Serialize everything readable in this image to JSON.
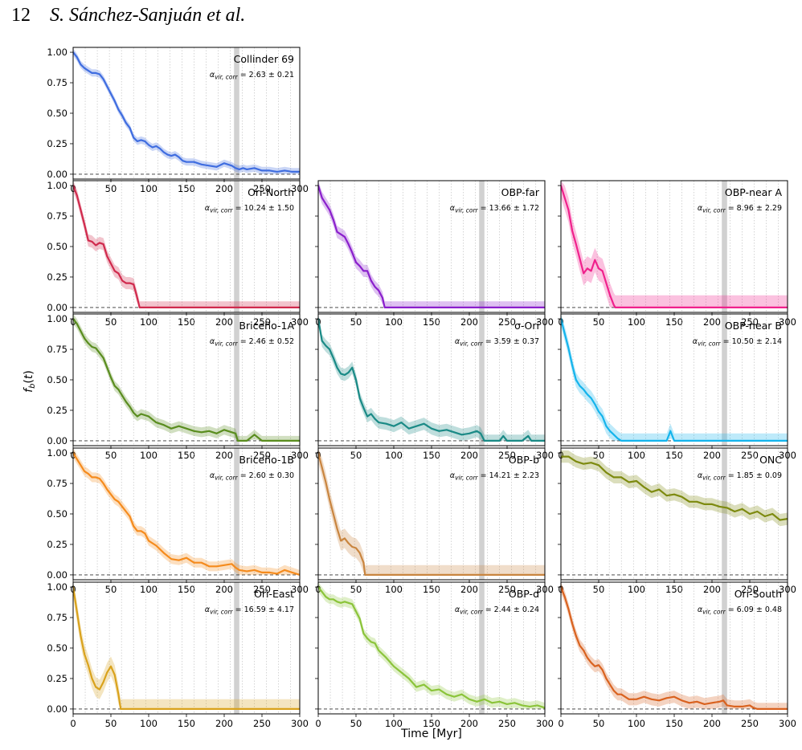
{
  "header": {
    "page_number": "12",
    "authors": "S. Sánchez-Sanjuán et al."
  },
  "figure": {
    "xlabel": "Time [Myr]",
    "ylabel": "f_b(t)"
  },
  "chart_data": {
    "type": "line",
    "xlim": [
      0,
      300
    ],
    "ylim": [
      -0.04,
      1.04
    ],
    "xticks": [
      0,
      50,
      100,
      150,
      200,
      250,
      300
    ],
    "yticks": [
      0.0,
      0.25,
      0.5,
      0.75,
      1.0
    ],
    "xtick_labels": [
      "0",
      "50",
      "100",
      "150",
      "200",
      "250",
      "300"
    ],
    "ytick_labels": [
      "0.00",
      "0.25",
      "0.50",
      "0.75",
      "1.00"
    ],
    "vertical_gridlines": [
      16,
      32,
      48,
      64,
      80,
      96,
      112,
      128,
      144,
      160,
      176,
      192,
      208,
      224,
      240,
      256,
      272,
      288
    ],
    "shaded_band": [
      213,
      220
    ],
    "zero_reference_line": 0,
    "panels": [
      {
        "name": "Collinder 69",
        "alpha_text": "= 2.63 ± 0.21",
        "color": "#3f6de0",
        "row": 0,
        "col": 0,
        "band": 0.03,
        "x": [
          0,
          5,
          10,
          15,
          20,
          25,
          30,
          35,
          40,
          45,
          50,
          55,
          60,
          65,
          70,
          75,
          80,
          85,
          90,
          95,
          100,
          105,
          110,
          115,
          120,
          125,
          130,
          135,
          140,
          145,
          150,
          160,
          170,
          180,
          190,
          200,
          205,
          210,
          215,
          220,
          225,
          230,
          240,
          250,
          260,
          270,
          280,
          290,
          300
        ],
        "y": [
          1.0,
          0.96,
          0.9,
          0.87,
          0.85,
          0.83,
          0.83,
          0.82,
          0.78,
          0.72,
          0.66,
          0.6,
          0.53,
          0.48,
          0.42,
          0.38,
          0.3,
          0.27,
          0.28,
          0.27,
          0.24,
          0.22,
          0.23,
          0.21,
          0.18,
          0.16,
          0.15,
          0.16,
          0.14,
          0.11,
          0.1,
          0.1,
          0.08,
          0.07,
          0.06,
          0.09,
          0.08,
          0.07,
          0.05,
          0.04,
          0.05,
          0.04,
          0.05,
          0.03,
          0.03,
          0.02,
          0.03,
          0.02,
          0.02
        ]
      },
      {
        "name": "Ori-North",
        "alpha_text": "= 10.24 ± 1.50",
        "color": "#d02a4d",
        "row": 1,
        "col": 0,
        "band": 0.05,
        "x": [
          0,
          5,
          10,
          15,
          20,
          25,
          30,
          35,
          40,
          45,
          50,
          55,
          60,
          65,
          70,
          75,
          80,
          84,
          88,
          300
        ],
        "y": [
          1.0,
          0.92,
          0.8,
          0.68,
          0.55,
          0.54,
          0.51,
          0.53,
          0.52,
          0.42,
          0.36,
          0.3,
          0.28,
          0.22,
          0.2,
          0.2,
          0.19,
          0.1,
          0.0,
          0.0
        ]
      },
      {
        "name": "OBP-far",
        "alpha_text": "= 13.66 ± 1.72",
        "color": "#8a1fcc",
        "row": 1,
        "col": 1,
        "band": 0.05,
        "x": [
          0,
          5,
          10,
          15,
          20,
          25,
          30,
          35,
          40,
          45,
          50,
          55,
          60,
          65,
          70,
          75,
          80,
          85,
          88,
          300
        ],
        "y": [
          1.0,
          0.9,
          0.85,
          0.8,
          0.72,
          0.62,
          0.6,
          0.58,
          0.52,
          0.45,
          0.37,
          0.34,
          0.3,
          0.3,
          0.22,
          0.17,
          0.14,
          0.08,
          0.0,
          0.0
        ]
      },
      {
        "name": "OBP-near A",
        "alpha_text": "= 8.96 ± 2.29",
        "color": "#f0218c",
        "row": 1,
        "col": 2,
        "band": 0.1,
        "x": [
          0,
          5,
          10,
          15,
          20,
          25,
          30,
          35,
          40,
          45,
          50,
          55,
          60,
          65,
          70,
          72,
          300
        ],
        "y": [
          1.0,
          0.9,
          0.8,
          0.63,
          0.52,
          0.4,
          0.28,
          0.32,
          0.3,
          0.39,
          0.32,
          0.3,
          0.2,
          0.1,
          0.02,
          0.0,
          0.0
        ]
      },
      {
        "name": "Briceño-1A",
        "alpha_text": "= 2.46 ± 0.52",
        "color": "#5a8d1f",
        "row": 2,
        "col": 0,
        "band": 0.04,
        "x": [
          0,
          5,
          10,
          15,
          20,
          25,
          30,
          35,
          40,
          45,
          50,
          55,
          60,
          65,
          70,
          75,
          80,
          85,
          90,
          100,
          110,
          120,
          130,
          140,
          150,
          160,
          170,
          180,
          190,
          200,
          205,
          210,
          215,
          218,
          225,
          230,
          240,
          250,
          260,
          270,
          280,
          290,
          300
        ],
        "y": [
          1.0,
          0.96,
          0.9,
          0.84,
          0.8,
          0.77,
          0.76,
          0.72,
          0.68,
          0.6,
          0.52,
          0.45,
          0.42,
          0.37,
          0.32,
          0.28,
          0.23,
          0.2,
          0.22,
          0.2,
          0.15,
          0.13,
          0.1,
          0.12,
          0.1,
          0.08,
          0.07,
          0.08,
          0.06,
          0.09,
          0.08,
          0.07,
          0.06,
          0.0,
          0.0,
          0.0,
          0.05,
          0.0,
          0.0,
          0.0,
          0.0,
          0.0,
          0.0
        ]
      },
      {
        "name": "σ-Ori",
        "alpha_text": "= 3.59 ± 0.37",
        "color": "#1a8a86",
        "row": 2,
        "col": 1,
        "band": 0.05,
        "x": [
          0,
          5,
          10,
          15,
          20,
          25,
          30,
          35,
          40,
          45,
          50,
          55,
          60,
          65,
          70,
          75,
          80,
          90,
          100,
          110,
          120,
          130,
          140,
          150,
          160,
          170,
          180,
          190,
          200,
          210,
          215,
          220,
          225,
          230,
          240,
          245,
          250,
          255,
          270,
          278,
          282,
          300
        ],
        "y": [
          1.0,
          0.82,
          0.78,
          0.75,
          0.68,
          0.6,
          0.55,
          0.54,
          0.56,
          0.6,
          0.5,
          0.35,
          0.27,
          0.2,
          0.22,
          0.18,
          0.15,
          0.14,
          0.12,
          0.15,
          0.1,
          0.12,
          0.14,
          0.1,
          0.08,
          0.09,
          0.07,
          0.05,
          0.06,
          0.08,
          0.06,
          0.0,
          0.0,
          0.0,
          0.0,
          0.04,
          0.0,
          0.0,
          0.0,
          0.04,
          0.0,
          0.0
        ]
      },
      {
        "name": "OBP-near B",
        "alpha_text": "= 10.50 ± 2.14",
        "color": "#14b4ec",
        "row": 2,
        "col": 2,
        "band": 0.06,
        "x": [
          0,
          5,
          10,
          15,
          20,
          25,
          30,
          35,
          40,
          45,
          50,
          55,
          60,
          65,
          70,
          75,
          80,
          140,
          145,
          150,
          300
        ],
        "y": [
          1.0,
          0.88,
          0.76,
          0.62,
          0.5,
          0.45,
          0.42,
          0.38,
          0.35,
          0.3,
          0.24,
          0.2,
          0.12,
          0.08,
          0.05,
          0.02,
          0.0,
          0.0,
          0.08,
          0.0,
          0.0
        ]
      },
      {
        "name": "Briceño-1B",
        "alpha_text": "= 2.60 ± 0.30",
        "color": "#f58b1d",
        "row": 3,
        "col": 0,
        "band": 0.04,
        "x": [
          0,
          5,
          10,
          15,
          20,
          25,
          30,
          35,
          40,
          45,
          50,
          55,
          60,
          65,
          70,
          75,
          80,
          85,
          90,
          95,
          100,
          110,
          120,
          130,
          140,
          150,
          160,
          170,
          180,
          190,
          200,
          210,
          215,
          220,
          230,
          240,
          250,
          260,
          270,
          280,
          290,
          300
        ],
        "y": [
          1.0,
          0.95,
          0.9,
          0.85,
          0.83,
          0.8,
          0.8,
          0.79,
          0.75,
          0.7,
          0.66,
          0.62,
          0.6,
          0.56,
          0.52,
          0.48,
          0.4,
          0.36,
          0.36,
          0.34,
          0.28,
          0.24,
          0.18,
          0.13,
          0.12,
          0.14,
          0.1,
          0.1,
          0.07,
          0.07,
          0.08,
          0.09,
          0.06,
          0.04,
          0.03,
          0.04,
          0.02,
          0.02,
          0.01,
          0.04,
          0.02,
          0.0
        ]
      },
      {
        "name": "OBP-b",
        "alpha_text": "= 14.21 ± 2.23",
        "color": "#c9853f",
        "row": 3,
        "col": 1,
        "band": 0.08,
        "x": [
          0,
          5,
          10,
          15,
          20,
          25,
          30,
          35,
          40,
          45,
          50,
          55,
          60,
          62,
          300
        ],
        "y": [
          1.0,
          0.88,
          0.76,
          0.62,
          0.5,
          0.38,
          0.28,
          0.3,
          0.26,
          0.23,
          0.22,
          0.18,
          0.1,
          0.0,
          0.0
        ]
      },
      {
        "name": "ONC",
        "alpha_text": "= 1.85 ± 0.09",
        "color": "#7d8a0f",
        "row": 3,
        "col": 2,
        "band": 0.05,
        "x": [
          0,
          10,
          20,
          30,
          40,
          50,
          60,
          70,
          80,
          90,
          100,
          110,
          120,
          130,
          140,
          150,
          160,
          170,
          180,
          190,
          200,
          210,
          220,
          230,
          240,
          250,
          260,
          270,
          280,
          290,
          300
        ],
        "y": [
          0.97,
          0.97,
          0.93,
          0.91,
          0.92,
          0.9,
          0.84,
          0.8,
          0.8,
          0.76,
          0.77,
          0.72,
          0.68,
          0.7,
          0.65,
          0.66,
          0.64,
          0.6,
          0.6,
          0.58,
          0.58,
          0.56,
          0.55,
          0.52,
          0.54,
          0.5,
          0.52,
          0.48,
          0.5,
          0.45,
          0.46
        ]
      },
      {
        "name": "Ori-East",
        "alpha_text": "= 16.59 ± 4.17",
        "color": "#d9a21c",
        "row": 4,
        "col": 0,
        "band": 0.08,
        "x": [
          0,
          5,
          10,
          15,
          20,
          25,
          30,
          35,
          40,
          45,
          50,
          55,
          60,
          63,
          300
        ],
        "y": [
          1.0,
          0.8,
          0.6,
          0.45,
          0.36,
          0.25,
          0.18,
          0.16,
          0.22,
          0.3,
          0.35,
          0.28,
          0.12,
          0.0,
          0.0
        ]
      },
      {
        "name": "OBP-d",
        "alpha_text": "= 2.44 ± 0.24",
        "color": "#8bc43a",
        "row": 4,
        "col": 1,
        "band": 0.04,
        "x": [
          0,
          5,
          10,
          15,
          20,
          25,
          30,
          35,
          40,
          45,
          50,
          55,
          60,
          65,
          70,
          75,
          80,
          90,
          100,
          110,
          120,
          130,
          140,
          150,
          160,
          170,
          180,
          190,
          200,
          210,
          220,
          230,
          240,
          250,
          260,
          270,
          280,
          290,
          300
        ],
        "y": [
          1.0,
          0.96,
          0.92,
          0.9,
          0.9,
          0.88,
          0.87,
          0.88,
          0.87,
          0.86,
          0.8,
          0.74,
          0.62,
          0.58,
          0.55,
          0.54,
          0.48,
          0.42,
          0.35,
          0.3,
          0.25,
          0.18,
          0.2,
          0.15,
          0.16,
          0.12,
          0.1,
          0.12,
          0.08,
          0.06,
          0.08,
          0.05,
          0.06,
          0.04,
          0.05,
          0.03,
          0.02,
          0.03,
          0.01
        ]
      },
      {
        "name": "Ori-South",
        "alpha_text": "= 6.09 ± 0.48",
        "color": "#d9621f",
        "row": 4,
        "col": 2,
        "band": 0.05,
        "x": [
          0,
          5,
          10,
          15,
          20,
          25,
          30,
          35,
          40,
          45,
          50,
          55,
          60,
          65,
          70,
          75,
          80,
          90,
          100,
          110,
          120,
          130,
          140,
          150,
          160,
          170,
          180,
          190,
          200,
          210,
          215,
          220,
          230,
          240,
          250,
          255,
          260,
          300
        ],
        "y": [
          1.0,
          0.92,
          0.82,
          0.7,
          0.6,
          0.52,
          0.48,
          0.42,
          0.38,
          0.35,
          0.36,
          0.32,
          0.25,
          0.2,
          0.15,
          0.12,
          0.12,
          0.08,
          0.08,
          0.1,
          0.08,
          0.07,
          0.09,
          0.1,
          0.07,
          0.05,
          0.06,
          0.04,
          0.05,
          0.06,
          0.07,
          0.03,
          0.02,
          0.02,
          0.03,
          0.01,
          0.0,
          0.0
        ]
      }
    ]
  }
}
